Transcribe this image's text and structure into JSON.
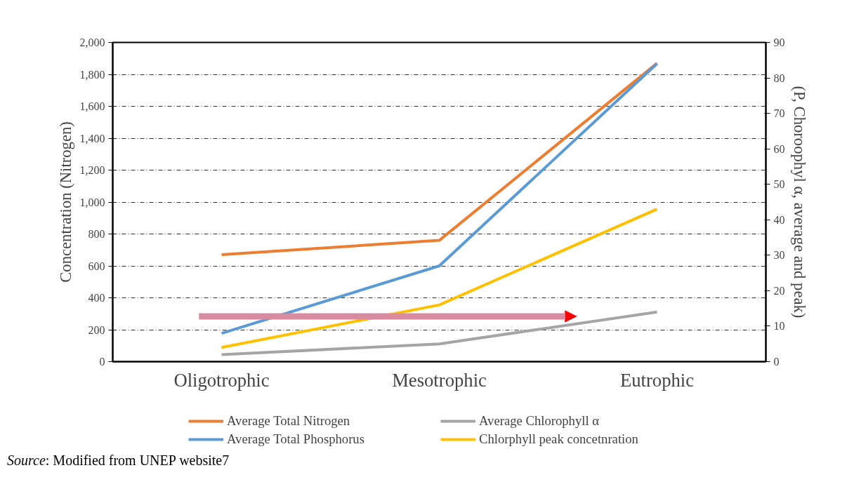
{
  "chart_data": {
    "type": "line",
    "categories": [
      "Oligotrophic",
      "Mesotrophic",
      "Eutrophic"
    ],
    "ylabel": "Concentration (Nitrogen)",
    "y2label": "(P, Choroophyl α, average and peak)",
    "ylim": [
      0,
      2000
    ],
    "yticks": [
      {
        "value": 0,
        "label": "0"
      },
      {
        "value": 200,
        "label": "200"
      },
      {
        "value": 400,
        "label": "400"
      },
      {
        "value": 600,
        "label": "600"
      },
      {
        "value": 800,
        "label": "800"
      },
      {
        "value": 1000,
        "label": "1,000"
      },
      {
        "value": 1200,
        "label": "1,200"
      },
      {
        "value": 1400,
        "label": "1,400"
      },
      {
        "value": 1600,
        "label": "1,600"
      },
      {
        "value": 1800,
        "label": "1,800"
      },
      {
        "value": 2000,
        "label": "2,000"
      }
    ],
    "y2lim": [
      0,
      90
    ],
    "y2ticks": [
      0,
      10,
      20,
      30,
      40,
      50,
      60,
      70,
      80,
      90
    ],
    "series": [
      {
        "name": "Average Total Nitrogen",
        "color": "#ed7d31",
        "values": [
          670,
          760,
          1870
        ]
      },
      {
        "name": "Average Total Phosphorus",
        "color": "#5b9bd5",
        "values": [
          8,
          27,
          84
        ],
        "axis": "y2"
      },
      {
        "name": "Average Chlorophyll α",
        "color": "#a5a5a5",
        "values": [
          2,
          5,
          14
        ],
        "axis": "y2"
      },
      {
        "name": "Chlorphyll peak concetnration",
        "color": "#ffc000",
        "values": [
          4,
          16,
          43
        ],
        "axis": "y2"
      }
    ],
    "grid": "y",
    "legend": "bottom",
    "line_style": "solid",
    "marker": "none",
    "annotations": [
      "Source: Modified  from UNEP website7"
    ]
  }
}
